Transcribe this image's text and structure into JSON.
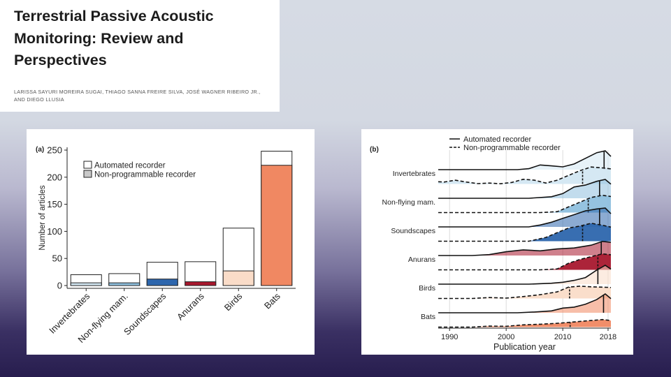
{
  "slide": {
    "title": "Terrestrial Passive Acoustic Monitoring: Review and Perspectives",
    "authors_line1": "LARISSA SAYURI MOREIRA SUGAI, THIAGO SANNA FREIRE SILVA, JOSÉ WAGNER RIBEIRO JR.,",
    "authors_line2": "AND DIEGO LLUSIA"
  },
  "chart_data": [
    {
      "type": "bar",
      "panel_label": "(a)",
      "ylabel": "Number of articles",
      "xlabel": "",
      "ylim": [
        0,
        250
      ],
      "yticks": [
        0,
        50,
        100,
        150,
        200,
        250
      ],
      "categories": [
        "Invertebrates",
        "Non-flying mam.",
        "Soundscapes",
        "Anurans",
        "Birds",
        "Bats"
      ],
      "series": [
        {
          "name": "Automated recorder",
          "values": [
            20,
            22,
            43,
            44,
            106,
            248
          ]
        },
        {
          "name": "Non-programmable recorder",
          "values": [
            5,
            5,
            12,
            7,
            27,
            222
          ]
        }
      ],
      "category_colors": [
        "#d3e7f2",
        "#8fc0de",
        "#2d66ad",
        "#a8182e",
        "#fadcc8",
        "#f08862"
      ],
      "legend_position": "top-left",
      "grid": false
    },
    {
      "type": "area",
      "subtype": "ridgeline",
      "panel_label": "(b)",
      "xlabel": "Publication year",
      "xticks": [
        1990,
        2000,
        2010,
        2018
      ],
      "xlim": [
        1988,
        2018.5
      ],
      "categories": [
        "Invertebrates",
        "Non-flying mam.",
        "Soundscapes",
        "Anurans",
        "Birds",
        "Bats"
      ],
      "series": [
        {
          "name": "Automated recorder",
          "style": "solid"
        },
        {
          "name": "Non-programmable recorder",
          "style": "dashed"
        }
      ],
      "ridges": [
        {
          "category": "Invertebrates",
          "color": "#d3e7f2",
          "automated": {
            "x": [
              1988,
              2002,
              2004,
              2006,
              2008,
              2010,
              2012,
              2014,
              2016,
              2017.5,
              2018.5
            ],
            "y": [
              0,
              0,
              0.05,
              0.25,
              0.2,
              0.15,
              0.3,
              0.6,
              0.9,
              1,
              0.7
            ],
            "median": 2017.3
          },
          "nonprog": {
            "x": [
              1988,
              1989,
              1991,
              1993,
              1995,
              1997,
              1999,
              2001,
              2003,
              2005,
              2007,
              2009,
              2011,
              2013,
              2015,
              2017,
              2018.5
            ],
            "y": [
              0.12,
              0.1,
              0.2,
              0.1,
              0.02,
              0.05,
              0.01,
              0.08,
              0.25,
              0.2,
              0.05,
              0.2,
              0.45,
              0.7,
              0.9,
              0.85,
              0.8
            ],
            "median": 2013.5
          }
        },
        {
          "category": "Non-flying mam.",
          "color": "#8fc0de",
          "automated": {
            "x": [
              1988,
              2004,
              2008,
              2010,
              2012,
              2014,
              2016,
              2017.5,
              2018.5
            ],
            "y": [
              0,
              0,
              0.08,
              0.25,
              0.6,
              0.7,
              0.9,
              1,
              0.75
            ],
            "median": 2016.5
          },
          "nonprog": {
            "x": [
              1988,
              2006,
              2009,
              2011,
              2013,
              2015,
              2017,
              2018.5
            ],
            "y": [
              0,
              0,
              0.05,
              0.3,
              0.55,
              0.8,
              0.92,
              0.85
            ],
            "median": 2014.5
          }
        },
        {
          "category": "Soundscapes",
          "color": "#2d66ad",
          "automated": {
            "x": [
              1988,
              2004,
              2006,
              2008,
              2010,
              2012,
              2014,
              2016,
              2017.5,
              2018.5
            ],
            "y": [
              0,
              0,
              0.1,
              0.25,
              0.45,
              0.65,
              0.85,
              0.95,
              1,
              0.7
            ],
            "median": 2016.5
          },
          "nonprog": {
            "x": [
              1988,
              2004,
              2007,
              2009,
              2011,
              2013,
              2015,
              2017,
              2018.5
            ],
            "y": [
              0,
              0,
              0.2,
              0.45,
              0.7,
              0.8,
              0.95,
              0.85,
              0.75
            ],
            "median": 2013.5
          }
        },
        {
          "category": "Anurans",
          "color": "#a8182e",
          "automated": {
            "x": [
              1988,
              1994,
              1997,
              2000,
              2003,
              2006,
              2009,
              2012,
              2015,
              2017,
              2018.5
            ],
            "y": [
              0,
              0,
              0.05,
              0.2,
              0.3,
              0.25,
              0.35,
              0.4,
              0.55,
              0.75,
              0.7
            ],
            "median": 2016.8
          },
          "nonprog": {
            "x": [
              1988,
              2006,
              2009,
              2011,
              2013,
              2015,
              2017,
              2018.5
            ],
            "y": [
              0,
              0,
              0.05,
              0.35,
              0.55,
              0.7,
              0.85,
              0.8
            ],
            "median": 2016.2
          }
        },
        {
          "category": "Birds",
          "color": "#fadcc8",
          "automated": {
            "x": [
              1988,
              2004,
              2008,
              2010,
              2012,
              2014,
              2016,
              2017.5,
              2018.5
            ],
            "y": [
              0,
              0,
              0.05,
              0.1,
              0.2,
              0.35,
              0.75,
              1,
              0.8
            ],
            "median": 2016.2
          },
          "nonprog": {
            "x": [
              1988,
              1994,
              1997,
              2000,
              2003,
              2006,
              2009,
              2011,
              2013,
              2015,
              2017,
              2018.5
            ],
            "y": [
              0,
              0,
              0.05,
              0.02,
              0.1,
              0.2,
              0.35,
              0.6,
              0.65,
              0.62,
              0.6,
              0.58
            ],
            "median": 2011.2
          }
        },
        {
          "category": "Bats",
          "color": "#f08862",
          "automated": {
            "x": [
              1988,
              2002,
              2005,
              2008,
              2010,
              2012,
              2014,
              2016,
              2017.5,
              2018.5
            ],
            "y": [
              0,
              0,
              0.04,
              0.1,
              0.25,
              0.3,
              0.45,
              0.7,
              1,
              0.75
            ],
            "median": 2017.2
          },
          "nonprog": {
            "x": [
              1988,
              1994,
              1997,
              2000,
              2003,
              2006,
              2009,
              2011,
              2013,
              2015,
              2017,
              2018.5
            ],
            "y": [
              0,
              0,
              0.05,
              0.04,
              0.12,
              0.15,
              0.2,
              0.25,
              0.3,
              0.35,
              0.4,
              0.35
            ],
            "median": 2011.3
          }
        }
      ],
      "legend_position": "top",
      "grid": true
    }
  ]
}
